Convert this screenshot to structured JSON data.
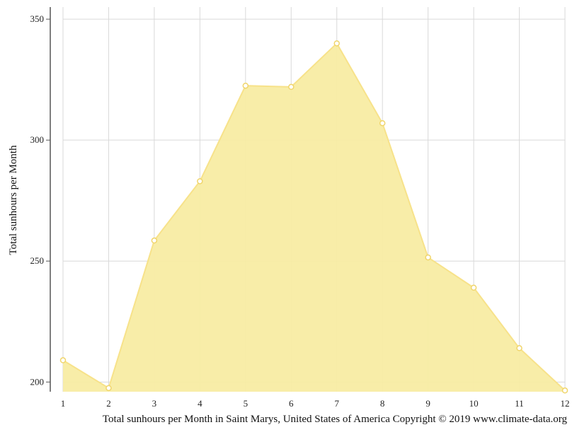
{
  "chart_data": {
    "type": "area",
    "title": "Total sunhours per Month in Saint Marys, United States of America Copyright © 2019 www.climate-data.org",
    "xlabel": "",
    "ylabel": "Total sunhours per Month",
    "categories": [
      "1",
      "2",
      "3",
      "4",
      "5",
      "6",
      "7",
      "8",
      "9",
      "10",
      "11",
      "12"
    ],
    "values": [
      209,
      197.5,
      258.5,
      283,
      322.5,
      322,
      340,
      307,
      251.5,
      239,
      214,
      196.5
    ],
    "ylim": [
      196,
      355
    ],
    "yticks": [
      200,
      250,
      300,
      350
    ],
    "grid": true,
    "legend": "none",
    "colors": {
      "fill": "#f8eca3",
      "line": "#f7e28a",
      "marker_fill": "#ffffff",
      "marker_stroke": "#f0d56b",
      "grid": "#d9d9d9",
      "axis": "#555555"
    }
  }
}
